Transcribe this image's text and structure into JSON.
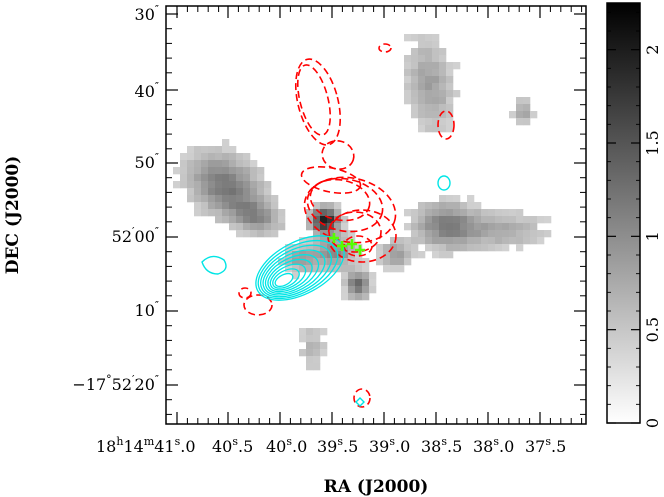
{
  "chart_data": {
    "type": "heatmap",
    "title": "",
    "xlabel": "RA (J2000)",
    "ylabel": "DEC (J2000)",
    "x_tick_labels": [
      {
        "text": "18h14m41s.0",
        "display": [
          "18",
          "h",
          "14",
          "m",
          "41",
          "s",
          ".0"
        ]
      },
      {
        "text": "40s.5",
        "display": [
          "40",
          "s",
          ".5"
        ]
      },
      {
        "text": "40s.0",
        "display": [
          "40",
          "s",
          ".0"
        ]
      },
      {
        "text": "39s.5",
        "display": [
          "39",
          "s",
          ".5"
        ]
      },
      {
        "text": "39s.0",
        "display": [
          "39",
          "s",
          ".0"
        ]
      },
      {
        "text": "38s.5",
        "display": [
          "38",
          "s",
          ".5"
        ]
      },
      {
        "text": "38s.0",
        "display": [
          "38",
          "s",
          ".0"
        ]
      },
      {
        "text": "37s.5",
        "display": [
          "37",
          "s",
          ".5"
        ]
      }
    ],
    "y_tick_labels": [
      {
        "text": "30\"",
        "display": [
          "30",
          "″"
        ]
      },
      {
        "text": "40\"",
        "display": [
          "40",
          "″"
        ]
      },
      {
        "text": "50\"",
        "display": [
          "50",
          "″"
        ]
      },
      {
        "text": "52'00\"",
        "display": [
          "52",
          "′",
          "00",
          "″"
        ]
      },
      {
        "text": "10\"",
        "display": [
          "10",
          "″"
        ]
      },
      {
        "text": "−17°52'20\"",
        "display": [
          "−17",
          "°",
          "52",
          "′",
          "20",
          "″"
        ]
      }
    ],
    "colorbar": {
      "range": [
        0,
        2.25
      ],
      "ticks": [
        "0",
        "0.5",
        "1",
        "1.5",
        "2"
      ],
      "tick_values": [
        0,
        0.5,
        1,
        1.5,
        2
      ],
      "colormap": "gray_r"
    },
    "grid": false,
    "legend": "none",
    "overlays": [
      {
        "kind": "contours",
        "color": "#ff0000",
        "style": "dashed"
      },
      {
        "kind": "contours",
        "color": "#00e5e5",
        "style": "solid"
      },
      {
        "kind": "markers",
        "color": "#55ff00",
        "marker": "cross"
      }
    ],
    "colors": {
      "red_contours": "#ff0000",
      "cyan_contours": "#00e5e5",
      "green_markers": "#55ff00"
    }
  }
}
